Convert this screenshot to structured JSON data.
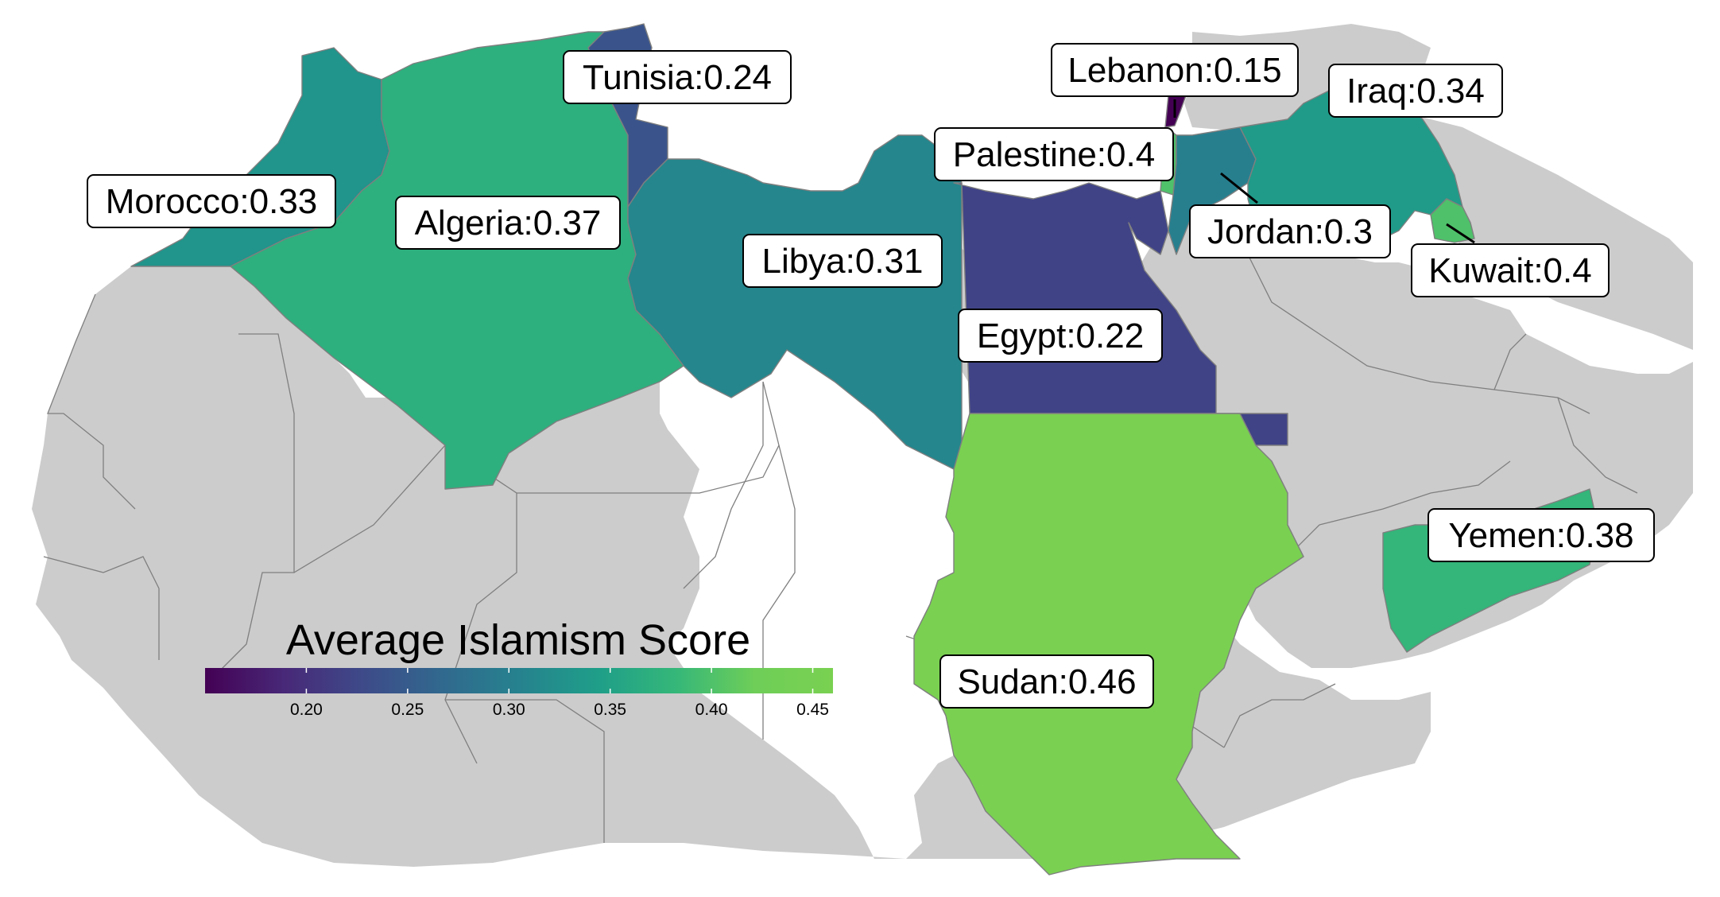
{
  "legend": {
    "title": "Average Islamism Score",
    "domain": [
      0.15,
      0.46
    ],
    "ticks": [
      "0.20",
      "0.25",
      "0.30",
      "0.35",
      "0.40",
      "0.45"
    ],
    "tick_values": [
      0.2,
      0.25,
      0.3,
      0.35,
      0.4,
      0.45
    ],
    "palette": [
      "#440154",
      "#482878",
      "#3e4a89",
      "#31688e",
      "#26828e",
      "#1f9e89",
      "#35b779",
      "#6ece58",
      "#7ad151"
    ]
  },
  "countries": [
    {
      "id": "morocco",
      "name": "Morocco",
      "score": 0.33,
      "label": "Morocco:0.33"
    },
    {
      "id": "algeria",
      "name": "Algeria",
      "score": 0.37,
      "label": "Algeria:0.37"
    },
    {
      "id": "tunisia",
      "name": "Tunisia",
      "score": 0.24,
      "label": "Tunisia:0.24"
    },
    {
      "id": "libya",
      "name": "Libya",
      "score": 0.31,
      "label": "Libya:0.31"
    },
    {
      "id": "egypt",
      "name": "Egypt",
      "score": 0.22,
      "label": "Egypt:0.22"
    },
    {
      "id": "sudan",
      "name": "Sudan",
      "score": 0.46,
      "label": "Sudan:0.46"
    },
    {
      "id": "lebanon",
      "name": "Lebanon",
      "score": 0.15,
      "label": "Lebanon:0.15"
    },
    {
      "id": "palestine",
      "name": "Palestine",
      "score": 0.4,
      "label": "Palestine:0.4"
    },
    {
      "id": "jordan",
      "name": "Jordan",
      "score": 0.3,
      "label": "Jordan:0.3"
    },
    {
      "id": "iraq",
      "name": "Iraq",
      "score": 0.34,
      "label": "Iraq:0.34"
    },
    {
      "id": "kuwait",
      "name": "Kuwait",
      "score": 0.4,
      "label": "Kuwait:0.4"
    },
    {
      "id": "yemen",
      "name": "Yemen",
      "score": 0.38,
      "label": "Yemen:0.38"
    }
  ]
}
